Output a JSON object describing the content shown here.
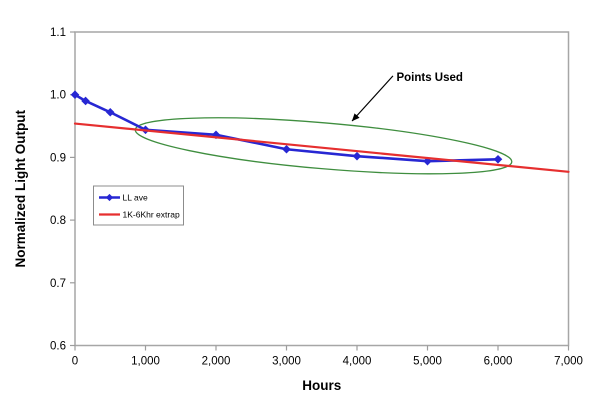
{
  "figure": {
    "background": "#ffffff",
    "plot_border_color": "#a6a6a6",
    "axis_color": "#9c9c9c",
    "legend_border_color": "#8c8c8c",
    "annotation_arrow_color": "#000000"
  },
  "chart_data": {
    "type": "line",
    "title": "",
    "xlabel": "Hours",
    "ylabel": "Normalized Light Output",
    "xlim": [
      0,
      7000
    ],
    "ylim": [
      0.6,
      1.1
    ],
    "grid": false,
    "x_ticks": {
      "values": [
        0,
        1000,
        2000,
        3000,
        4000,
        5000,
        6000,
        7000
      ],
      "labels": [
        "0",
        "1,000",
        "2,000",
        "3,000",
        "4,000",
        "5,000",
        "6,000",
        "7,000"
      ]
    },
    "y_ticks": {
      "values": [
        0.6,
        0.7,
        0.8,
        0.9,
        1.0,
        1.1
      ],
      "labels": [
        "0.6",
        "0.7",
        "0.8",
        "0.9",
        "1.0",
        "1.1"
      ]
    },
    "legend_position": "inside-left",
    "series": [
      {
        "name": "LL ave",
        "color": "#2727d3",
        "marker": "diamond",
        "x": [
          0,
          150,
          500,
          1000,
          2000,
          3000,
          4000,
          5000,
          6000
        ],
        "y": [
          1.0,
          0.99,
          0.972,
          0.944,
          0.936,
          0.913,
          0.902,
          0.894,
          0.897
        ]
      },
      {
        "name": "1K-6Khr extrap",
        "color": "#e62f2f",
        "marker": "none",
        "x": [
          0,
          7000
        ],
        "y": [
          0.954,
          0.877
        ]
      }
    ],
    "annotation": {
      "label": "Points Used",
      "label_pos": {
        "x": 4560,
        "y": 1.0215
      },
      "arrow": {
        "from": {
          "x": 4510,
          "y": 1.03
        },
        "to": {
          "x": 3930,
          "y": 0.958
        }
      },
      "ellipse": {
        "cx": 3525,
        "cy": 0.9185,
        "rx": 2680,
        "ry": 0.0366,
        "rotate_deg": 4.9,
        "color": "#3f8e3f"
      }
    }
  }
}
